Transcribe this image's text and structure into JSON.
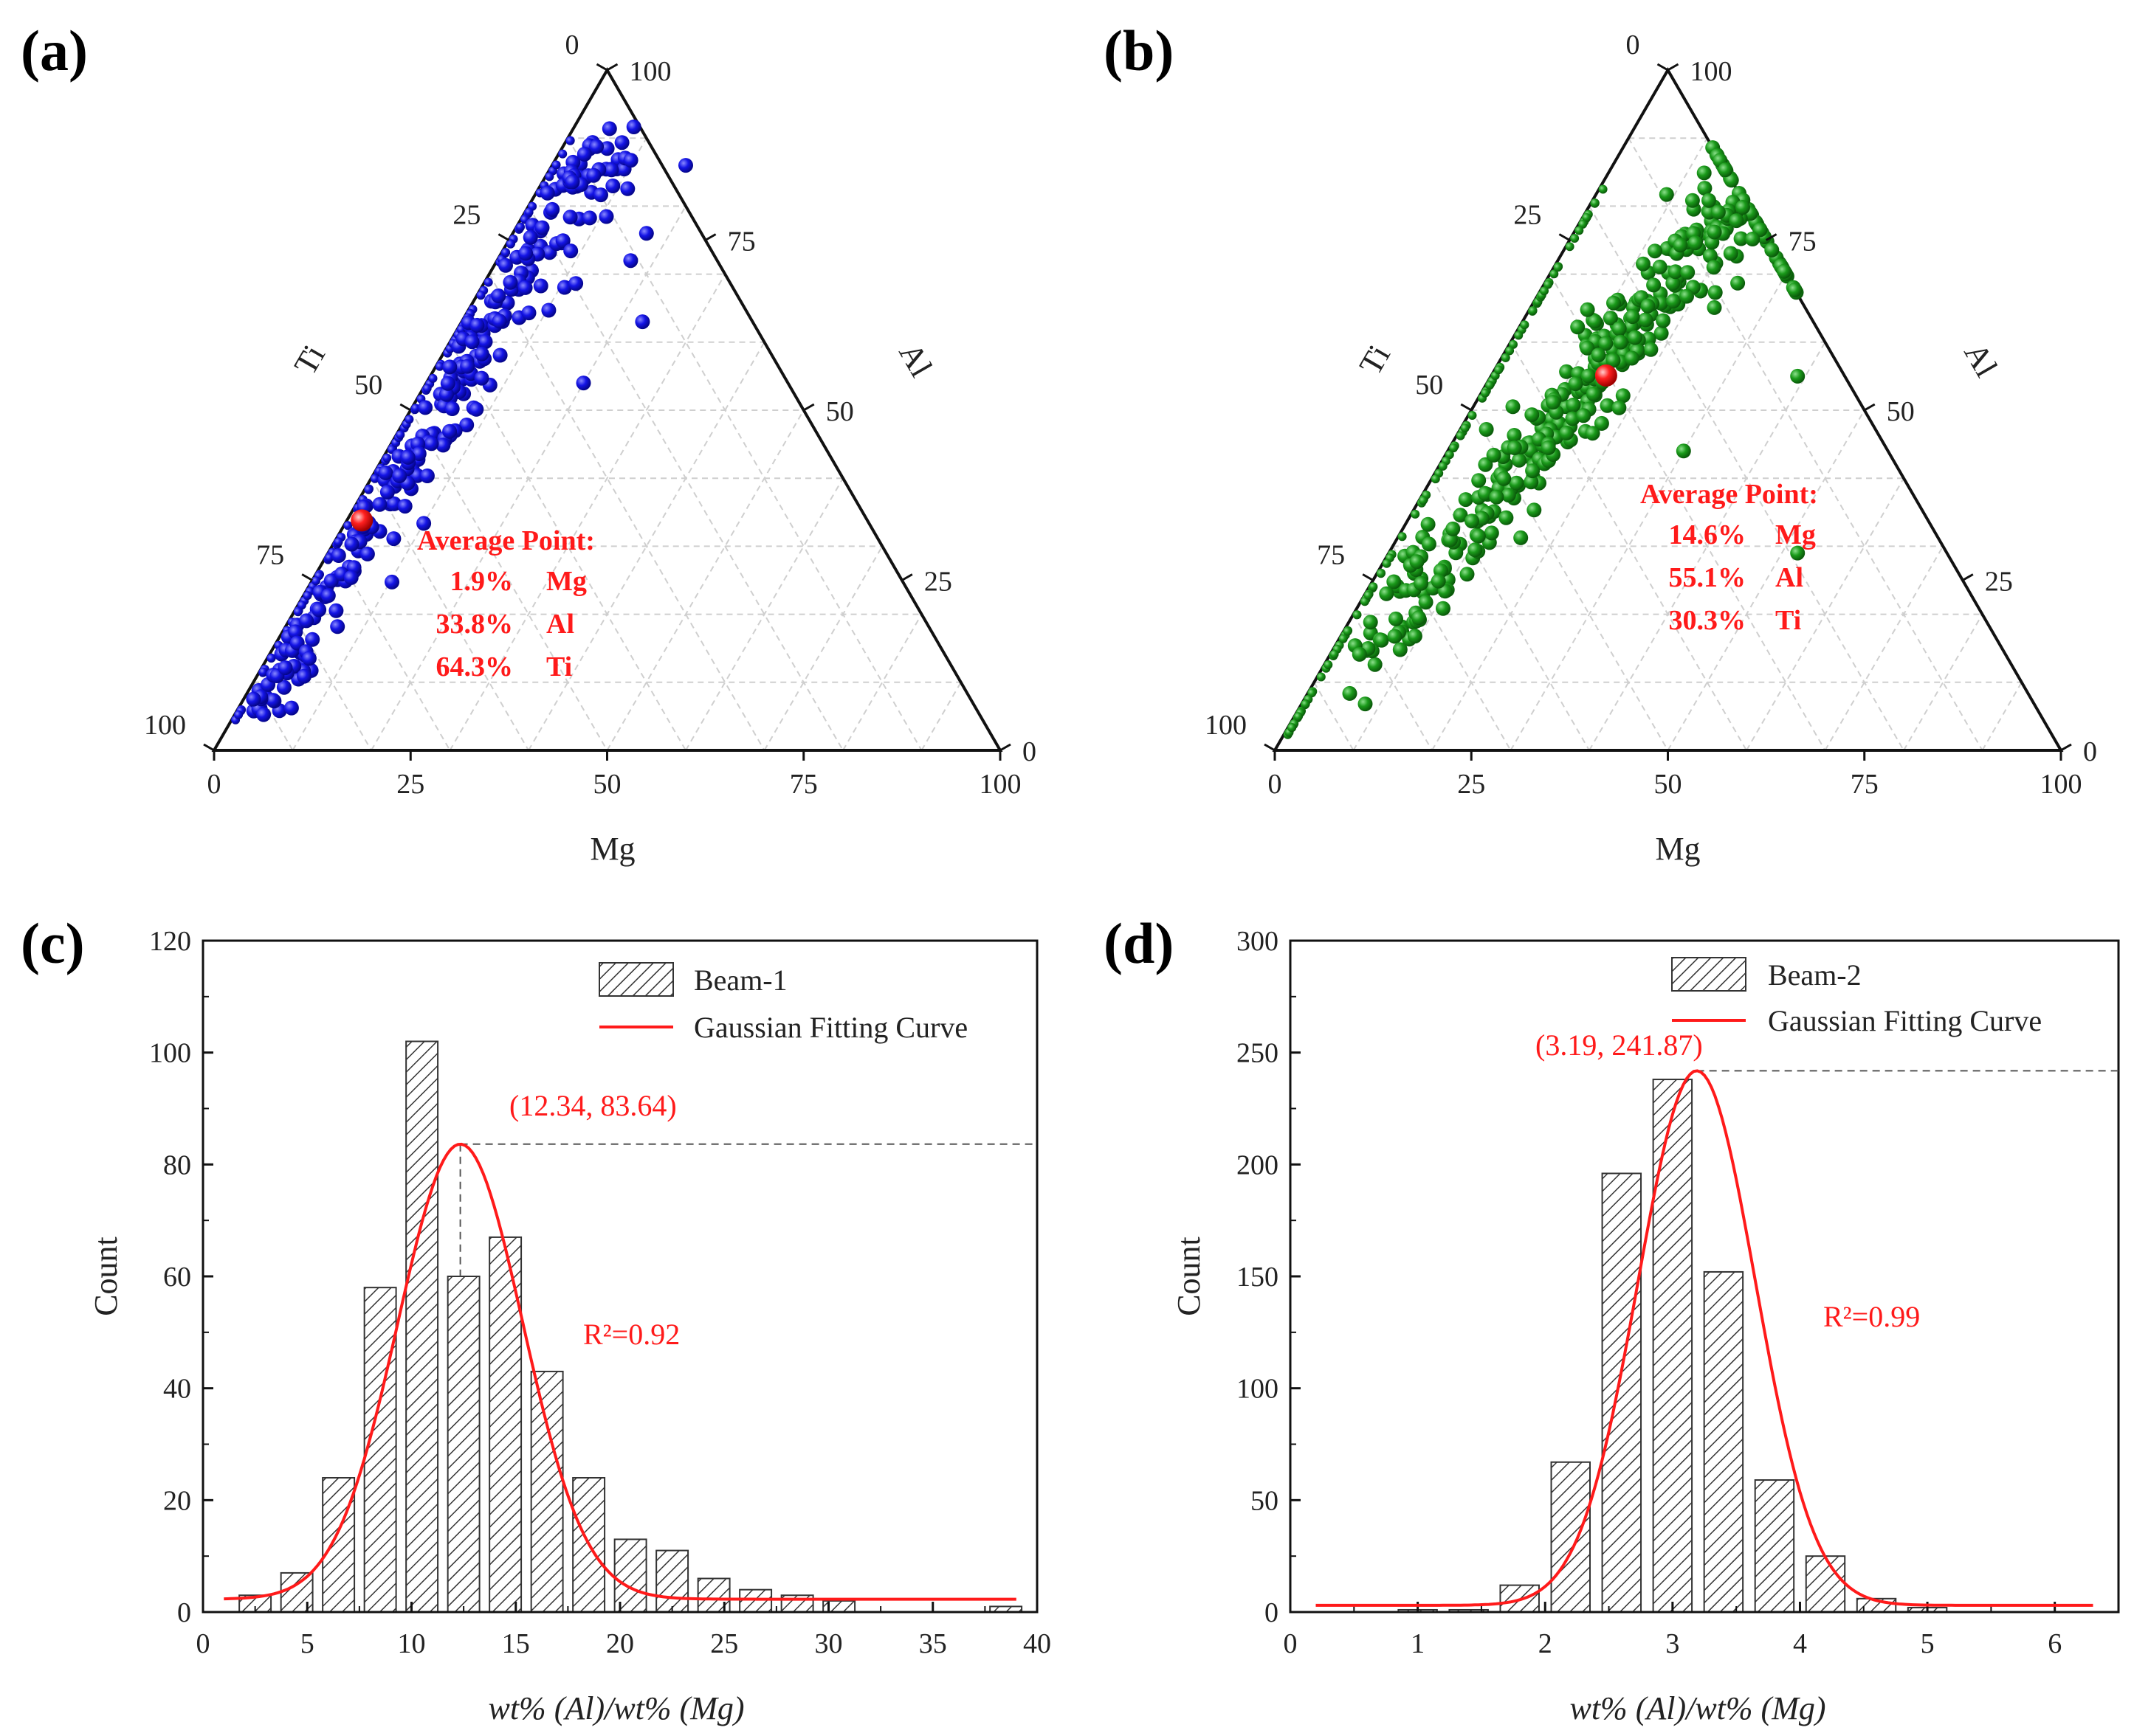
{
  "panels": {
    "a": {
      "label": "(a)"
    },
    "b": {
      "label": "(b)"
    },
    "c": {
      "label": "(c)"
    },
    "d": {
      "label": "(d)"
    }
  },
  "colors": {
    "blue": "#1414e6",
    "green": "#1a9a1a",
    "red": "#ff1a1a",
    "hatch": "#333333"
  },
  "chart_data": [
    {
      "id": "a",
      "type": "scatter",
      "subtype": "ternary",
      "axes": {
        "bottom": "Mg",
        "left": "Ti",
        "right": "Al"
      },
      "ticks": [
        "0",
        "25",
        "50",
        "75",
        "100"
      ],
      "series_color": "blue",
      "average_point": {
        "title": "Average Point:",
        "mg": 1.9,
        "al": 33.8,
        "ti": 64.3,
        "lines": [
          "1.9%",
          "Mg",
          "33.8%",
          "Al",
          "64.3%",
          "Ti"
        ]
      },
      "description": "Points clustered along the Mg=0 (Ti–Al) edge, spreading to Mg up to ~20%"
    },
    {
      "id": "b",
      "type": "scatter",
      "subtype": "ternary",
      "axes": {
        "bottom": "Mg",
        "left": "Ti",
        "right": "Al"
      },
      "ticks": [
        "0",
        "25",
        "50",
        "75",
        "100"
      ],
      "series_color": "green",
      "average_point": {
        "title": "Average Point:",
        "mg": 14.6,
        "al": 55.1,
        "ti": 30.3,
        "lines": [
          "14.6%",
          "Mg",
          "55.1%",
          "Al",
          "30.3%",
          "Ti"
        ]
      }
    },
    {
      "id": "c",
      "type": "bar",
      "title": "",
      "xlabel": "wt% (Al)/wt% (Mg)",
      "ylabel": "Count",
      "xlim": [
        0,
        40
      ],
      "ylim": [
        0,
        120
      ],
      "xticks": [
        0,
        5,
        10,
        15,
        20,
        25,
        30,
        35,
        40
      ],
      "yticks": [
        0,
        20,
        40,
        60,
        80,
        100,
        120
      ],
      "bin_width": 2,
      "bins": [
        2.5,
        4.5,
        6.5,
        8.5,
        10.5,
        12.5,
        14.5,
        16.5,
        18.5,
        20.5,
        22.5,
        24.5,
        26.5,
        28.5,
        30.5,
        38.5
      ],
      "values": [
        3,
        7,
        24,
        58,
        102,
        60,
        67,
        43,
        24,
        13,
        11,
        6,
        4,
        3,
        2,
        1
      ],
      "legend": {
        "bar": "Beam-1",
        "curve": "Gaussian Fitting Curve",
        "position": "top-right"
      },
      "fit": {
        "peak_x": 12.34,
        "peak_y": 83.64,
        "sigma": 3.0,
        "baseline": 2.3,
        "xrange": [
          1,
          39
        ]
      },
      "peak_label": "(12.34, 83.64)",
      "r2_label": "R²=0.92"
    },
    {
      "id": "d",
      "type": "bar",
      "title": "",
      "xlabel": "wt% (Al)/wt% (Mg)",
      "ylabel": "Count",
      "xlim": [
        0,
        6.5
      ],
      "ylim": [
        0,
        300
      ],
      "xticks": [
        0,
        1,
        2,
        3,
        4,
        5,
        6
      ],
      "yticks": [
        0,
        50,
        100,
        150,
        200,
        250,
        300
      ],
      "bin_width": 0.4,
      "bins": [
        1.0,
        1.4,
        1.8,
        2.2,
        2.6,
        3.0,
        3.4,
        3.8,
        4.2,
        4.6,
        5.0,
        5.4
      ],
      "values": [
        1,
        1,
        12,
        67,
        196,
        238,
        152,
        59,
        25,
        6,
        2,
        0
      ],
      "legend": {
        "bar": "Beam-2",
        "curve": "Gaussian Fitting Curve",
        "position": "top-right"
      },
      "fit": {
        "peak_x": 3.19,
        "peak_y": 241.87,
        "sigma": 0.46,
        "baseline": 3,
        "xrange": [
          0.2,
          6.3
        ]
      },
      "peak_label": "(3.19, 241.87)",
      "r2_label": "R²=0.99"
    }
  ]
}
